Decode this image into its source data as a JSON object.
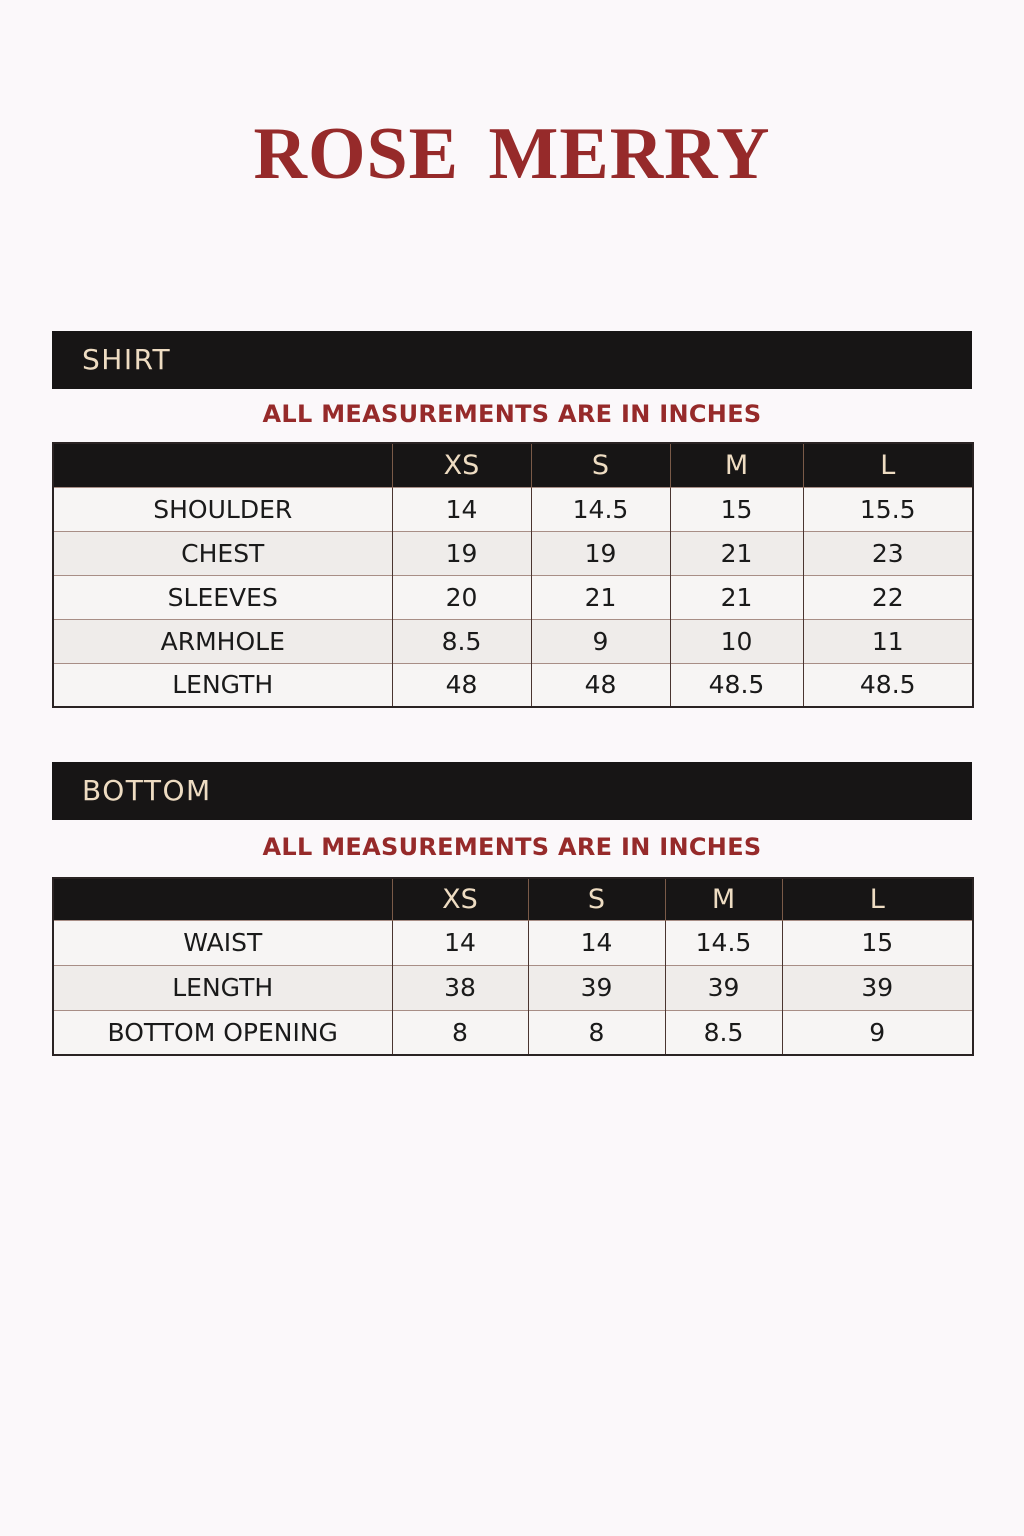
{
  "brand": "ROSE MERRY",
  "shirt": {
    "heading": "SHIRT",
    "note": "ALL MEASUREMENTS ARE IN INCHES",
    "sizes": [
      "XS",
      "S",
      "M",
      "L"
    ],
    "rows": [
      {
        "label": "SHOULDER",
        "values": [
          "14",
          "14.5",
          "15",
          "15.5"
        ]
      },
      {
        "label": "CHEST",
        "values": [
          "19",
          "19",
          "21",
          "23"
        ]
      },
      {
        "label": "SLEEVES",
        "values": [
          "20",
          "21",
          "21",
          "22"
        ]
      },
      {
        "label": "ARMHOLE",
        "values": [
          "8.5",
          "9",
          "10",
          "11"
        ]
      },
      {
        "label": "LENGTH",
        "values": [
          "48",
          "48",
          "48.5",
          "48.5"
        ]
      }
    ]
  },
  "bottom": {
    "heading": "BOTTOM",
    "note": "ALL MEASUREMENTS ARE IN INCHES",
    "sizes": [
      "XS",
      "S",
      "M",
      "L"
    ],
    "rows": [
      {
        "label": "WAIST",
        "values": [
          "14",
          "14",
          "14.5",
          "15"
        ]
      },
      {
        "label": "LENGTH",
        "values": [
          "38",
          "39",
          "39",
          "39"
        ]
      },
      {
        "label": "BOTTOM OPENING",
        "values": [
          "8",
          "8",
          "8.5",
          "9"
        ]
      }
    ]
  },
  "colors": {
    "accent": "#962a2a",
    "header_bg": "#171515",
    "header_text": "#eedcc2"
  }
}
